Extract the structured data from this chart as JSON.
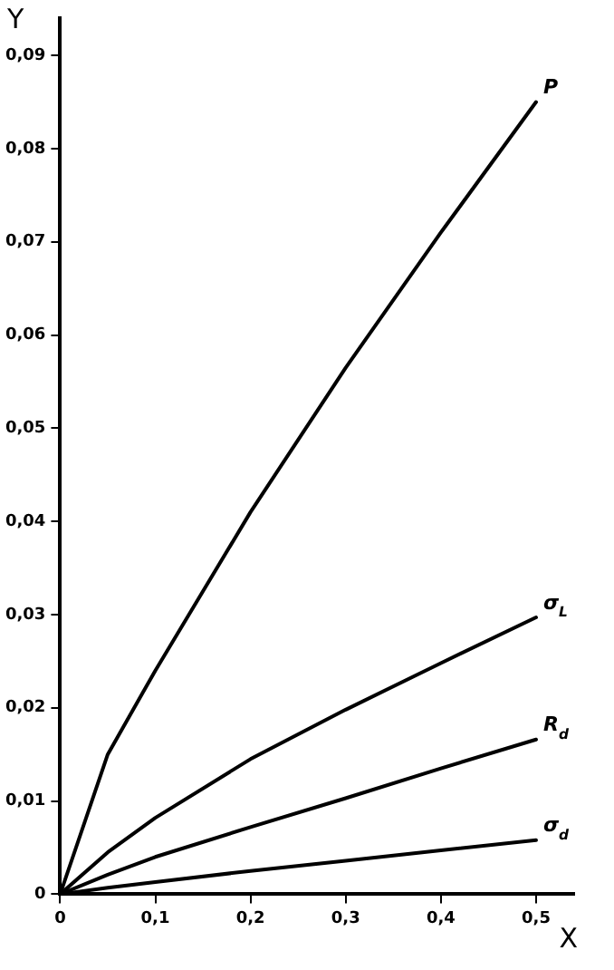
{
  "chart_data": {
    "type": "line",
    "xlabel": "X",
    "ylabel": "Y",
    "x": [
      0,
      0.05,
      0.1,
      0.2,
      0.3,
      0.4,
      0.5
    ],
    "series": [
      {
        "name": "P",
        "color": "#000000",
        "values": [
          0,
          0.015,
          0.024,
          0.041,
          0.0565,
          0.071,
          0.085
        ]
      },
      {
        "name": "σ$_{L}$",
        "color": "#000000",
        "values": [
          0,
          0.0045,
          0.0082,
          0.0145,
          0.0198,
          0.0248,
          0.0297
        ]
      },
      {
        "name": "R$_{d}$",
        "color": "#000000",
        "values": [
          0,
          0.0021,
          0.004,
          0.0072,
          0.0103,
          0.0135,
          0.0166
        ]
      },
      {
        "name": "σ$_{d}$",
        "color": "#000000",
        "values": [
          0,
          0.0007,
          0.0013,
          0.0025,
          0.0036,
          0.0047,
          0.0058
        ]
      }
    ],
    "xlim": [
      0,
      0.54
    ],
    "ylim": [
      0,
      0.094
    ],
    "xticks": [
      0,
      {
        "value": 0.1,
        "label": "0,1"
      },
      {
        "value": 0.2,
        "label": "0,2"
      },
      {
        "value": 0.3,
        "label": "0,3"
      },
      {
        "value": 0.4,
        "label": "0,4"
      },
      {
        "value": 0.5,
        "label": "0,5"
      }
    ],
    "yticks": [
      0,
      {
        "value": 0.01,
        "label": "0,01"
      },
      {
        "value": 0.02,
        "label": "0,02"
      },
      {
        "value": 0.03,
        "label": "0,03"
      },
      {
        "value": 0.04,
        "label": "0,04"
      },
      {
        "value": 0.05,
        "label": "0,05"
      },
      {
        "value": 0.06,
        "label": "0,06"
      },
      {
        "value": 0.07,
        "label": "0,07"
      },
      {
        "value": 0.08,
        "label": "0,08"
      },
      {
        "value": 0.09,
        "label": "0,09"
      }
    ],
    "grid": false,
    "legend": false,
    "marker": "none",
    "line_style": "solid"
  }
}
